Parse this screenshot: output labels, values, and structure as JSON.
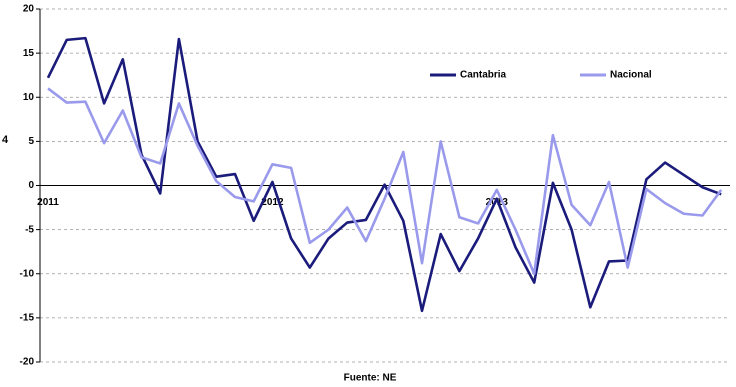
{
  "chart_data": {
    "type": "line",
    "y_label": "4",
    "source": "Fuente: NE",
    "categories": [
      "2011",
      null,
      null,
      null,
      null,
      null,
      null,
      null,
      null,
      null,
      null,
      null,
      "2012",
      null,
      null,
      null,
      null,
      null,
      null,
      null,
      null,
      null,
      null,
      null,
      "2013",
      null,
      null,
      null,
      null,
      null,
      null,
      null,
      null,
      null,
      null,
      null,
      null
    ],
    "series": [
      {
        "name": "Cantabria",
        "color": "#1b1b7c",
        "values": [
          12.2,
          16.5,
          16.7,
          9.3,
          14.3,
          3.5,
          -0.9,
          16.6,
          5,
          1,
          1.3,
          -4,
          0.4,
          -6,
          -9.3,
          -6,
          -4.2,
          -3.9,
          0.1,
          -4,
          -14.2,
          -5.5,
          -9.7,
          -6,
          -1.5,
          -7,
          -11,
          0.3,
          -5,
          -13.8,
          -8.6,
          -8.5,
          0.7,
          2.6,
          1.2,
          -0.2,
          -1
        ]
      },
      {
        "name": "Nacional",
        "color": "#9a9aec",
        "values": [
          11,
          9.4,
          9.5,
          4.8,
          8.5,
          3.2,
          2.5,
          9.3,
          4.5,
          0.5,
          -1.3,
          -1.8,
          2.4,
          2,
          -6.5,
          -5,
          -2.5,
          -6.3,
          -1.5,
          3.8,
          -8.8,
          5,
          -3.6,
          -4.3,
          -0.5,
          -5,
          -10,
          5.7,
          -2.2,
          -4.5,
          0.4,
          -9.3,
          -0.4,
          -2,
          -3.2,
          -3.4,
          -0.5
        ]
      }
    ],
    "ylim": [
      -20,
      20
    ],
    "yticks": [
      -20,
      -15,
      -10,
      -5,
      0,
      5,
      10,
      15,
      20
    ],
    "grid": true,
    "legend": "top"
  }
}
